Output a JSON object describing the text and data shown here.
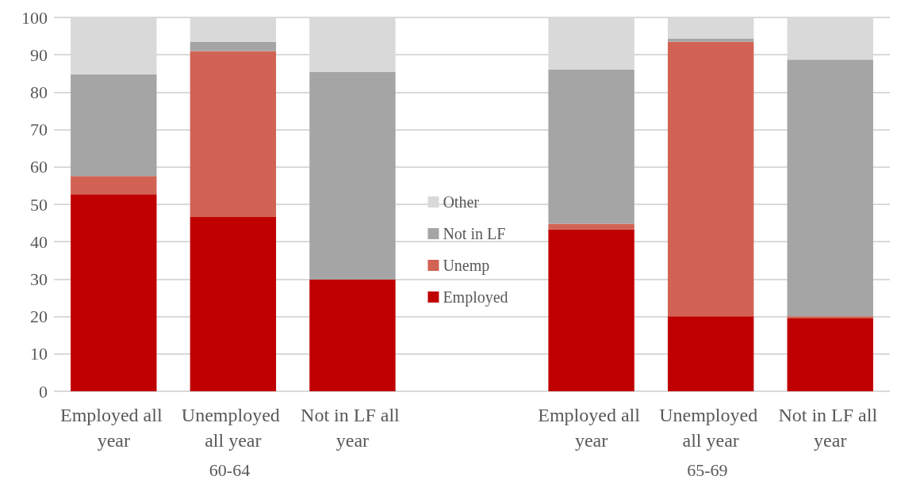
{
  "chart_data": {
    "type": "bar",
    "stacked": true,
    "categories": [
      "Employed all year",
      "Unemployed all year",
      "Not in LF all year",
      null,
      "Employed all year",
      "Unemployed all year",
      "Not in LF all year"
    ],
    "series": [
      {
        "name": "Employed",
        "color": "#c00000",
        "values": [
          52.7,
          46.6,
          29.9,
          null,
          43.3,
          20.1,
          19.5
        ]
      },
      {
        "name": "Unemp",
        "color": "#d26354",
        "values": [
          4.9,
          44.4,
          0,
          null,
          1.5,
          73.4,
          0.6
        ]
      },
      {
        "name": "Not in LF",
        "color": "#a5a5a5",
        "values": [
          27.2,
          2.5,
          55.5,
          null,
          41.2,
          0.8,
          68.6
        ]
      },
      {
        "name": "Other",
        "color": "#d9d9d9",
        "values": [
          15.2,
          6.5,
          14.6,
          null,
          14.0,
          5.7,
          11.3
        ]
      }
    ],
    "ylim": [
      0,
      100
    ],
    "yticks": [
      0,
      10,
      20,
      30,
      40,
      50,
      60,
      70,
      80,
      90,
      100
    ],
    "grid": "y",
    "legend": "center",
    "annotations": [
      "60-64",
      "65-69"
    ]
  }
}
